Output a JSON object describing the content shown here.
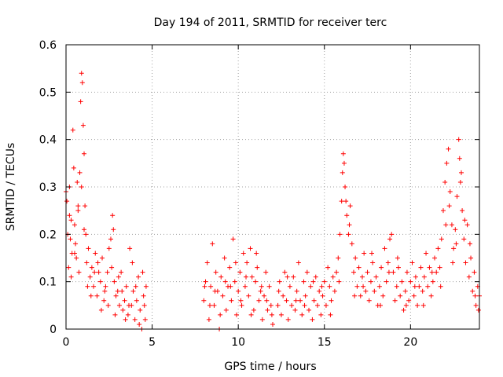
{
  "chart_data": {
    "type": "scatter",
    "title": "Day 194 of 2011, SRMTID for receiver terc",
    "xlabel": "GPS time / hours",
    "ylabel": "SRMTID / TECUs",
    "xlim": [
      0,
      24
    ],
    "ylim": [
      0,
      0.6
    ],
    "xticks": [
      0,
      5,
      10,
      15,
      20
    ],
    "xtick_labels": [
      "0",
      "5",
      "10",
      "15",
      "20"
    ],
    "yticks": [
      0,
      0.1,
      0.2,
      0.3,
      0.4,
      0.5,
      0.6
    ],
    "ytick_labels": [
      "0",
      "0.1",
      "0.2",
      "0.3",
      "0.4",
      "0.5",
      "0.6"
    ],
    "grid": true,
    "marker": "plus",
    "marker_color": "#ff0000",
    "series": [
      {
        "name": "SRMTID",
        "color": "#ff0000",
        "points": [
          [
            0.0,
            0.29
          ],
          [
            0.05,
            0.27
          ],
          [
            0.1,
            0.2
          ],
          [
            0.15,
            0.13
          ],
          [
            0.2,
            0.3
          ],
          [
            0.25,
            0.19
          ],
          [
            0.3,
            0.11
          ],
          [
            0.35,
            0.16
          ],
          [
            0.4,
            0.42
          ],
          [
            0.45,
            0.34
          ],
          [
            0.5,
            0.22
          ],
          [
            0.55,
            0.18
          ],
          [
            0.6,
            0.15
          ],
          [
            0.65,
            0.31
          ],
          [
            0.7,
            0.25
          ],
          [
            0.75,
            0.12
          ],
          [
            0.8,
            0.33
          ],
          [
            0.85,
            0.48
          ],
          [
            0.9,
            0.54
          ],
          [
            0.95,
            0.52
          ],
          [
            1.0,
            0.43
          ],
          [
            1.05,
            0.37
          ],
          [
            1.1,
            0.26
          ],
          [
            1.15,
            0.2
          ],
          [
            1.2,
            0.14
          ],
          [
            1.3,
            0.17
          ],
          [
            1.4,
            0.11
          ],
          [
            1.5,
            0.13
          ],
          [
            1.6,
            0.09
          ],
          [
            1.7,
            0.16
          ],
          [
            1.8,
            0.07
          ],
          [
            1.9,
            0.12
          ],
          [
            2.0,
            0.1
          ],
          [
            2.1,
            0.15
          ],
          [
            2.2,
            0.06
          ],
          [
            2.3,
            0.09
          ],
          [
            2.4,
            0.12
          ],
          [
            2.5,
            0.17
          ],
          [
            2.6,
            0.19
          ],
          [
            2.7,
            0.24
          ],
          [
            2.75,
            0.21
          ],
          [
            2.8,
            0.1
          ],
          [
            2.9,
            0.07
          ],
          [
            3.0,
            0.08
          ],
          [
            3.1,
            0.05
          ],
          [
            3.2,
            0.12
          ],
          [
            3.3,
            0.04
          ],
          [
            3.4,
            0.06
          ],
          [
            3.5,
            0.09
          ],
          [
            3.6,
            0.03
          ],
          [
            3.7,
            0.17
          ],
          [
            3.8,
            0.05
          ],
          [
            3.9,
            0.08
          ],
          [
            4.0,
            0.02
          ],
          [
            4.1,
            0.06
          ],
          [
            4.2,
            0.11
          ],
          [
            4.3,
            0.04
          ],
          [
            4.4,
            0.0
          ],
          [
            4.5,
            0.07
          ],
          [
            4.6,
            0.02
          ],
          [
            4.65,
            0.09
          ],
          [
            0.2,
            0.24
          ],
          [
            0.3,
            0.23
          ],
          [
            0.5,
            0.16
          ],
          [
            0.7,
            0.26
          ],
          [
            0.9,
            0.3
          ],
          [
            1.05,
            0.21
          ],
          [
            1.25,
            0.09
          ],
          [
            1.45,
            0.07
          ],
          [
            1.65,
            0.12
          ],
          [
            1.85,
            0.14
          ],
          [
            2.05,
            0.04
          ],
          [
            2.25,
            0.08
          ],
          [
            2.45,
            0.05
          ],
          [
            2.65,
            0.13
          ],
          [
            2.85,
            0.03
          ],
          [
            3.05,
            0.11
          ],
          [
            3.25,
            0.08
          ],
          [
            3.45,
            0.02
          ],
          [
            3.65,
            0.05
          ],
          [
            3.85,
            0.14
          ],
          [
            4.05,
            0.09
          ],
          [
            4.25,
            0.01
          ],
          [
            4.45,
            0.12
          ],
          [
            4.55,
            0.05
          ],
          [
            8.0,
            0.06
          ],
          [
            8.1,
            0.1
          ],
          [
            8.2,
            0.14
          ],
          [
            8.3,
            0.02
          ],
          [
            8.4,
            0.09
          ],
          [
            8.5,
            0.18
          ],
          [
            8.6,
            0.05
          ],
          [
            8.7,
            0.12
          ],
          [
            8.8,
            0.08
          ],
          [
            8.9,
            0.0
          ],
          [
            9.0,
            0.11
          ],
          [
            9.1,
            0.07
          ],
          [
            9.2,
            0.15
          ],
          [
            9.3,
            0.04
          ],
          [
            9.4,
            0.09
          ],
          [
            9.5,
            0.13
          ],
          [
            9.6,
            0.06
          ],
          [
            9.7,
            0.19
          ],
          [
            9.8,
            0.1
          ],
          [
            9.9,
            0.03
          ],
          [
            10.0,
            0.08
          ],
          [
            10.1,
            0.12
          ],
          [
            10.2,
            0.05
          ],
          [
            10.3,
            0.16
          ],
          [
            10.4,
            0.09
          ],
          [
            10.5,
            0.14
          ],
          [
            10.6,
            0.07
          ],
          [
            10.7,
            0.17
          ],
          [
            10.8,
            0.11
          ],
          [
            10.9,
            0.04
          ],
          [
            11.0,
            0.1
          ],
          [
            11.1,
            0.13
          ],
          [
            11.2,
            0.06
          ],
          [
            11.3,
            0.08
          ],
          [
            11.4,
            0.02
          ],
          [
            11.5,
            0.07
          ],
          [
            11.6,
            0.12
          ],
          [
            11.7,
            0.04
          ],
          [
            11.8,
            0.09
          ],
          [
            11.9,
            0.05
          ],
          [
            12.0,
            0.01
          ],
          [
            8.05,
            0.09
          ],
          [
            8.35,
            0.05
          ],
          [
            8.65,
            0.08
          ],
          [
            8.95,
            0.03
          ],
          [
            9.25,
            0.1
          ],
          [
            9.55,
            0.09
          ],
          [
            9.85,
            0.14
          ],
          [
            10.15,
            0.06
          ],
          [
            10.45,
            0.11
          ],
          [
            10.75,
            0.03
          ],
          [
            11.05,
            0.16
          ],
          [
            11.35,
            0.09
          ],
          [
            11.65,
            0.06
          ],
          [
            11.95,
            0.03
          ],
          [
            12.3,
            0.05
          ],
          [
            12.4,
            0.1
          ],
          [
            12.5,
            0.03
          ],
          [
            12.6,
            0.07
          ],
          [
            12.7,
            0.12
          ],
          [
            12.8,
            0.06
          ],
          [
            12.9,
            0.02
          ],
          [
            13.0,
            0.09
          ],
          [
            13.1,
            0.05
          ],
          [
            13.2,
            0.11
          ],
          [
            13.3,
            0.04
          ],
          [
            13.4,
            0.08
          ],
          [
            13.5,
            0.14
          ],
          [
            13.6,
            0.06
          ],
          [
            13.7,
            0.03
          ],
          [
            13.8,
            0.1
          ],
          [
            13.9,
            0.07
          ],
          [
            14.0,
            0.12
          ],
          [
            14.1,
            0.04
          ],
          [
            14.2,
            0.09
          ],
          [
            14.3,
            0.02
          ],
          [
            14.4,
            0.06
          ],
          [
            14.5,
            0.11
          ],
          [
            14.6,
            0.05
          ],
          [
            14.7,
            0.08
          ],
          [
            14.8,
            0.03
          ],
          [
            14.9,
            0.07
          ],
          [
            15.0,
            0.1
          ],
          [
            15.1,
            0.05
          ],
          [
            15.2,
            0.13
          ],
          [
            15.3,
            0.09
          ],
          [
            15.4,
            0.06
          ],
          [
            15.5,
            0.11
          ],
          [
            15.6,
            0.08
          ],
          [
            15.7,
            0.12
          ],
          [
            15.8,
            0.15
          ],
          [
            15.9,
            0.2
          ],
          [
            16.0,
            0.27
          ],
          [
            16.05,
            0.33
          ],
          [
            16.1,
            0.37
          ],
          [
            16.15,
            0.35
          ],
          [
            16.2,
            0.3
          ],
          [
            16.3,
            0.24
          ],
          [
            16.4,
            0.2
          ],
          [
            16.5,
            0.26
          ],
          [
            16.6,
            0.18
          ],
          [
            16.7,
            0.12
          ],
          [
            16.8,
            0.15
          ],
          [
            16.9,
            0.09
          ],
          [
            17.0,
            0.13
          ],
          [
            17.1,
            0.07
          ],
          [
            17.2,
            0.11
          ],
          [
            17.3,
            0.16
          ],
          [
            17.4,
            0.08
          ],
          [
            17.5,
            0.12
          ],
          [
            17.6,
            0.06
          ],
          [
            17.7,
            0.1
          ],
          [
            17.8,
            0.14
          ],
          [
            17.9,
            0.08
          ],
          [
            18.0,
            0.11
          ],
          [
            18.1,
            0.05
          ],
          [
            18.2,
            0.09
          ],
          [
            18.3,
            0.13
          ],
          [
            18.4,
            0.07
          ],
          [
            18.5,
            0.17
          ],
          [
            18.6,
            0.1
          ],
          [
            18.7,
            0.14
          ],
          [
            18.8,
            0.19
          ],
          [
            18.9,
            0.2
          ],
          [
            19.0,
            0.12
          ],
          [
            19.1,
            0.06
          ],
          [
            19.2,
            0.09
          ],
          [
            19.3,
            0.13
          ],
          [
            19.4,
            0.07
          ],
          [
            19.5,
            0.1
          ],
          [
            19.6,
            0.04
          ],
          [
            19.7,
            0.08
          ],
          [
            19.8,
            0.12
          ],
          [
            19.9,
            0.06
          ],
          [
            20.0,
            0.1
          ],
          [
            20.1,
            0.14
          ],
          [
            20.2,
            0.07
          ],
          [
            20.3,
            0.11
          ],
          [
            20.4,
            0.05
          ],
          [
            20.5,
            0.09
          ],
          [
            20.6,
            0.13
          ],
          [
            20.7,
            0.08
          ],
          [
            20.8,
            0.11
          ],
          [
            20.9,
            0.16
          ],
          [
            21.0,
            0.09
          ],
          [
            21.1,
            0.13
          ],
          [
            21.2,
            0.07
          ],
          [
            21.3,
            0.1
          ],
          [
            21.4,
            0.15
          ],
          [
            21.5,
            0.12
          ],
          [
            21.6,
            0.17
          ],
          [
            21.7,
            0.13
          ],
          [
            21.8,
            0.19
          ],
          [
            21.9,
            0.25
          ],
          [
            22.0,
            0.31
          ],
          [
            22.1,
            0.35
          ],
          [
            22.2,
            0.38
          ],
          [
            22.3,
            0.29
          ],
          [
            22.4,
            0.22
          ],
          [
            22.5,
            0.17
          ],
          [
            22.6,
            0.21
          ],
          [
            22.7,
            0.28
          ],
          [
            22.8,
            0.4
          ],
          [
            22.85,
            0.36
          ],
          [
            22.9,
            0.31
          ],
          [
            23.0,
            0.25
          ],
          [
            23.1,
            0.19
          ],
          [
            23.2,
            0.14
          ],
          [
            23.3,
            0.22
          ],
          [
            23.4,
            0.11
          ],
          [
            23.5,
            0.15
          ],
          [
            23.6,
            0.08
          ],
          [
            23.7,
            0.12
          ],
          [
            23.8,
            0.05
          ],
          [
            23.9,
            0.09
          ],
          [
            24.0,
            0.07
          ],
          [
            12.35,
            0.08
          ],
          [
            12.85,
            0.11
          ],
          [
            13.35,
            0.06
          ],
          [
            13.85,
            0.05
          ],
          [
            14.35,
            0.1
          ],
          [
            14.85,
            0.09
          ],
          [
            15.35,
            0.03
          ],
          [
            15.85,
            0.1
          ],
          [
            16.25,
            0.27
          ],
          [
            16.45,
            0.22
          ],
          [
            16.75,
            0.07
          ],
          [
            17.25,
            0.09
          ],
          [
            17.75,
            0.16
          ],
          [
            18.25,
            0.05
          ],
          [
            18.75,
            0.12
          ],
          [
            19.25,
            0.15
          ],
          [
            19.75,
            0.05
          ],
          [
            20.25,
            0.09
          ],
          [
            20.75,
            0.05
          ],
          [
            21.25,
            0.12
          ],
          [
            21.75,
            0.09
          ],
          [
            22.05,
            0.22
          ],
          [
            22.25,
            0.26
          ],
          [
            22.45,
            0.14
          ],
          [
            22.65,
            0.18
          ],
          [
            22.95,
            0.33
          ],
          [
            23.15,
            0.23
          ],
          [
            23.45,
            0.18
          ],
          [
            23.75,
            0.07
          ],
          [
            23.95,
            0.04
          ]
        ]
      }
    ]
  }
}
